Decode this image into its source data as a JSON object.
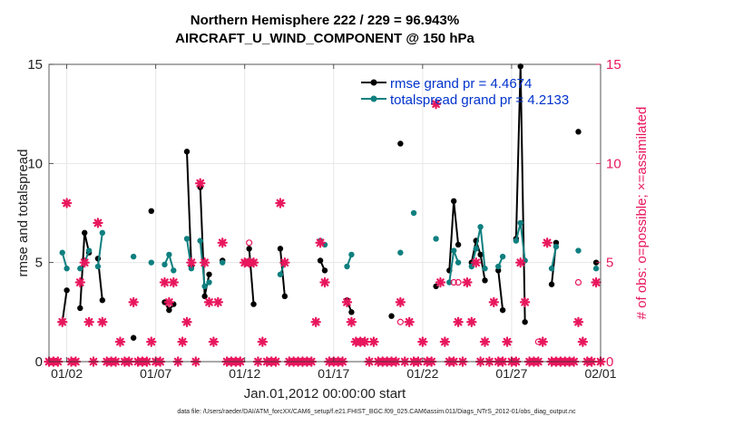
{
  "chart_data": {
    "type": "line",
    "title": "Northern Hemisphere 222 / 229 = 96.943%",
    "subtitle": "AIRCRAFT_U_WIND_COMPONENT @ 150 hPa",
    "xlabel": "Jan.01,2012 00:00:00 start",
    "ylabel": "rmse and totalspread",
    "ylabel_right": "# of obs: o=possible; ×=assimilated",
    "footnote": "data file: /Users/raeder/DAI/ATM_forcXX/CAM6_setup/f.e21.FHIST_BGC.f09_025.CAM6assim.011/Diags_NTrS_2012-01/obs_diag_output.nc",
    "xlim": [
      0.5,
      31.5
    ],
    "ylim": [
      0,
      15
    ],
    "ylim_right": [
      0,
      15
    ],
    "xticks": [
      1.5,
      6.5,
      11.5,
      16.5,
      21.5,
      26.5,
      31.5
    ],
    "xtick_labels": [
      "01/02",
      "01/07",
      "01/12",
      "01/17",
      "01/22",
      "01/27",
      "02/01"
    ],
    "yticks": [
      0,
      5,
      10,
      15
    ],
    "ytick_labels": [
      "0",
      "5",
      "10",
      "15"
    ],
    "yticks_right": [
      0,
      5,
      10,
      15
    ],
    "ytick_labels_right": [
      "0",
      "5",
      "10",
      "15"
    ],
    "colors": {
      "rmse": "#000000",
      "spread": "#0f7f7f",
      "obs": "#e8175d",
      "grid": "#e6e6e6",
      "legend_text": "#0033cc"
    },
    "series": [
      {
        "name": "rmse grand pr = 4.4674",
        "color": "#000000",
        "segments": [
          [
            [
              1.25,
              2.0
            ],
            [
              1.5,
              3.6
            ]
          ],
          [
            [
              2.25,
              2.7
            ],
            [
              2.5,
              6.5
            ],
            [
              2.75,
              5.5
            ]
          ],
          [
            [
              3.25,
              5.2
            ],
            [
              3.5,
              3.1
            ]
          ],
          [
            [
              5.25,
              1.2
            ]
          ],
          [
            [
              6.25,
              7.6
            ]
          ],
          [
            [
              7.0,
              3.0
            ],
            [
              7.25,
              2.6
            ],
            [
              7.5,
              2.9
            ]
          ],
          [
            [
              8.25,
              10.6
            ],
            [
              8.5,
              4.8
            ]
          ],
          [
            [
              9.0,
              8.8
            ],
            [
              9.25,
              3.3
            ],
            [
              9.5,
              4.4
            ]
          ],
          [
            [
              10.25,
              5.1
            ]
          ],
          [
            [
              11.75,
              5.7
            ],
            [
              12.0,
              2.9
            ]
          ],
          [
            [
              13.5,
              5.7
            ],
            [
              13.75,
              3.3
            ]
          ],
          [
            [
              15.75,
              5.1
            ],
            [
              16.0,
              4.6
            ]
          ],
          [
            [
              17.25,
              3.1
            ],
            [
              17.5,
              2.5
            ]
          ],
          [
            [
              19.75,
              2.3
            ]
          ],
          [
            [
              20.25,
              11.0
            ]
          ],
          [
            [
              22.25,
              3.8
            ]
          ],
          [
            [
              23.0,
              4.6
            ],
            [
              23.25,
              8.1
            ],
            [
              23.5,
              5.9
            ]
          ],
          [
            [
              24.25,
              5.0
            ],
            [
              24.5,
              6.1
            ],
            [
              24.75,
              5.4
            ],
            [
              25.0,
              4.1
            ]
          ],
          [
            [
              25.75,
              4.6
            ],
            [
              26.0,
              2.6
            ]
          ],
          [
            [
              26.75,
              6.2
            ],
            [
              27.0,
              14.9
            ],
            [
              27.25,
              2.0
            ]
          ],
          [
            [
              28.75,
              3.9
            ],
            [
              29.0,
              6.0
            ]
          ],
          [
            [
              30.25,
              11.6
            ]
          ],
          [
            [
              31.25,
              5.0
            ]
          ]
        ]
      },
      {
        "name": "totalspread grand pr = 4.2133",
        "color": "#0f7f7f",
        "segments": [
          [
            [
              1.25,
              5.5
            ],
            [
              1.5,
              4.7
            ]
          ],
          [
            [
              2.25,
              4.7
            ],
            [
              2.5,
              5.0
            ],
            [
              2.75,
              5.6
            ]
          ],
          [
            [
              3.25,
              4.8
            ],
            [
              3.5,
              6.5
            ]
          ],
          [
            [
              5.25,
              5.3
            ]
          ],
          [
            [
              6.25,
              5.0
            ]
          ],
          [
            [
              7.0,
              4.9
            ],
            [
              7.25,
              5.4
            ],
            [
              7.5,
              4.6
            ]
          ],
          [
            [
              8.25,
              6.2
            ],
            [
              8.5,
              4.7
            ]
          ],
          [
            [
              9.0,
              6.1
            ],
            [
              9.25,
              3.8
            ],
            [
              9.5,
              4.0
            ]
          ],
          [
            [
              10.25,
              5.0
            ]
          ],
          [
            [
              11.75,
              5.1
            ],
            [
              12.0,
              5.0
            ]
          ],
          [
            [
              13.5,
              4.4
            ],
            [
              13.75,
              5.0
            ]
          ],
          [
            [
              15.75,
              6.1
            ],
            [
              16.0,
              5.9
            ]
          ],
          [
            [
              17.25,
              4.8
            ],
            [
              17.5,
              5.4
            ]
          ],
          [
            [
              20.25,
              5.5
            ]
          ],
          [
            [
              21.0,
              7.5
            ]
          ],
          [
            [
              22.25,
              6.2
            ]
          ],
          [
            [
              23.0,
              4.0
            ],
            [
              23.25,
              5.6
            ],
            [
              23.5,
              5.0
            ]
          ],
          [
            [
              24.25,
              4.8
            ],
            [
              24.5,
              5.7
            ],
            [
              24.75,
              6.8
            ],
            [
              25.0,
              4.7
            ]
          ],
          [
            [
              25.75,
              4.8
            ],
            [
              26.0,
              5.3
            ]
          ],
          [
            [
              26.75,
              6.1
            ],
            [
              27.0,
              7.0
            ],
            [
              27.25,
              5.1
            ]
          ],
          [
            [
              28.75,
              4.7
            ],
            [
              29.0,
              5.8
            ]
          ],
          [
            [
              30.25,
              5.6
            ]
          ],
          [
            [
              31.25,
              4.7
            ]
          ]
        ]
      },
      {
        "name": "possible",
        "color": "#e8175d",
        "marker": "circle",
        "points": [
          [
            11.75,
            6
          ],
          [
            20.25,
            2
          ],
          [
            23.25,
            4
          ],
          [
            23.5,
            4
          ],
          [
            28.0,
            1
          ],
          [
            30.25,
            4
          ]
        ]
      },
      {
        "name": "assimilated",
        "color": "#e8175d",
        "marker": "star",
        "points": [
          [
            0.5,
            0
          ],
          [
            0.75,
            0
          ],
          [
            1.0,
            0
          ],
          [
            1.25,
            2
          ],
          [
            1.5,
            8
          ],
          [
            1.75,
            0
          ],
          [
            2.0,
            0
          ],
          [
            2.25,
            4
          ],
          [
            2.5,
            5
          ],
          [
            2.75,
            2
          ],
          [
            3.0,
            0
          ],
          [
            3.25,
            7
          ],
          [
            3.5,
            2
          ],
          [
            3.75,
            0
          ],
          [
            4.0,
            0
          ],
          [
            4.25,
            0
          ],
          [
            4.5,
            1
          ],
          [
            4.75,
            0
          ],
          [
            5.0,
            0
          ],
          [
            5.25,
            3
          ],
          [
            5.5,
            0
          ],
          [
            5.75,
            0
          ],
          [
            6.0,
            0
          ],
          [
            6.25,
            1
          ],
          [
            6.5,
            0
          ],
          [
            6.75,
            0
          ],
          [
            7.0,
            4
          ],
          [
            7.25,
            3
          ],
          [
            7.5,
            4
          ],
          [
            7.75,
            0
          ],
          [
            8.0,
            1
          ],
          [
            8.25,
            2
          ],
          [
            8.5,
            5
          ],
          [
            8.75,
            0
          ],
          [
            9.0,
            9
          ],
          [
            9.25,
            5
          ],
          [
            9.5,
            3
          ],
          [
            9.75,
            1
          ],
          [
            10.0,
            3
          ],
          [
            10.25,
            6
          ],
          [
            10.5,
            0
          ],
          [
            10.75,
            0
          ],
          [
            11.0,
            0
          ],
          [
            11.25,
            0
          ],
          [
            11.5,
            5
          ],
          [
            11.75,
            5
          ],
          [
            12.0,
            5
          ],
          [
            12.25,
            0
          ],
          [
            12.5,
            1
          ],
          [
            12.75,
            0
          ],
          [
            13.0,
            0
          ],
          [
            13.25,
            0
          ],
          [
            13.5,
            8
          ],
          [
            13.75,
            5
          ],
          [
            14.0,
            0
          ],
          [
            14.25,
            0
          ],
          [
            14.5,
            0
          ],
          [
            14.75,
            0
          ],
          [
            15.0,
            0
          ],
          [
            15.25,
            0
          ],
          [
            15.5,
            2
          ],
          [
            15.75,
            6
          ],
          [
            16.0,
            4
          ],
          [
            16.25,
            0
          ],
          [
            16.5,
            0
          ],
          [
            16.75,
            0
          ],
          [
            17.0,
            0
          ],
          [
            17.25,
            3
          ],
          [
            17.5,
            2
          ],
          [
            17.75,
            1
          ],
          [
            18.0,
            1
          ],
          [
            18.25,
            1
          ],
          [
            18.5,
            0
          ],
          [
            18.75,
            1
          ],
          [
            19.0,
            0
          ],
          [
            19.25,
            0
          ],
          [
            19.5,
            0
          ],
          [
            19.75,
            0
          ],
          [
            20.0,
            0
          ],
          [
            20.25,
            3
          ],
          [
            20.5,
            0
          ],
          [
            20.75,
            2
          ],
          [
            21.0,
            0
          ],
          [
            21.25,
            0
          ],
          [
            21.5,
            1
          ],
          [
            21.75,
            0
          ],
          [
            22.0,
            0
          ],
          [
            22.25,
            13
          ],
          [
            22.5,
            4
          ],
          [
            22.75,
            1
          ],
          [
            23.0,
            0
          ],
          [
            23.25,
            0
          ],
          [
            23.5,
            2
          ],
          [
            23.75,
            0
          ],
          [
            24.0,
            4
          ],
          [
            24.25,
            2
          ],
          [
            24.5,
            5
          ],
          [
            24.75,
            0
          ],
          [
            25.0,
            1
          ],
          [
            25.25,
            0
          ],
          [
            25.5,
            3
          ],
          [
            25.75,
            0
          ],
          [
            26.0,
            0
          ],
          [
            26.25,
            1
          ],
          [
            26.5,
            0
          ],
          [
            26.75,
            0
          ],
          [
            27.0,
            5
          ],
          [
            27.25,
            3
          ],
          [
            27.5,
            0
          ],
          [
            27.75,
            0
          ],
          [
            28.0,
            0
          ],
          [
            28.25,
            1
          ],
          [
            28.5,
            6
          ],
          [
            28.75,
            0
          ],
          [
            29.0,
            0
          ],
          [
            29.25,
            0
          ],
          [
            29.5,
            0
          ],
          [
            29.75,
            0
          ],
          [
            30.0,
            0
          ],
          [
            30.25,
            2
          ],
          [
            30.5,
            1
          ],
          [
            30.75,
            0
          ],
          [
            31.0,
            0
          ],
          [
            31.25,
            4
          ],
          [
            31.5,
            0
          ]
        ]
      }
    ]
  }
}
